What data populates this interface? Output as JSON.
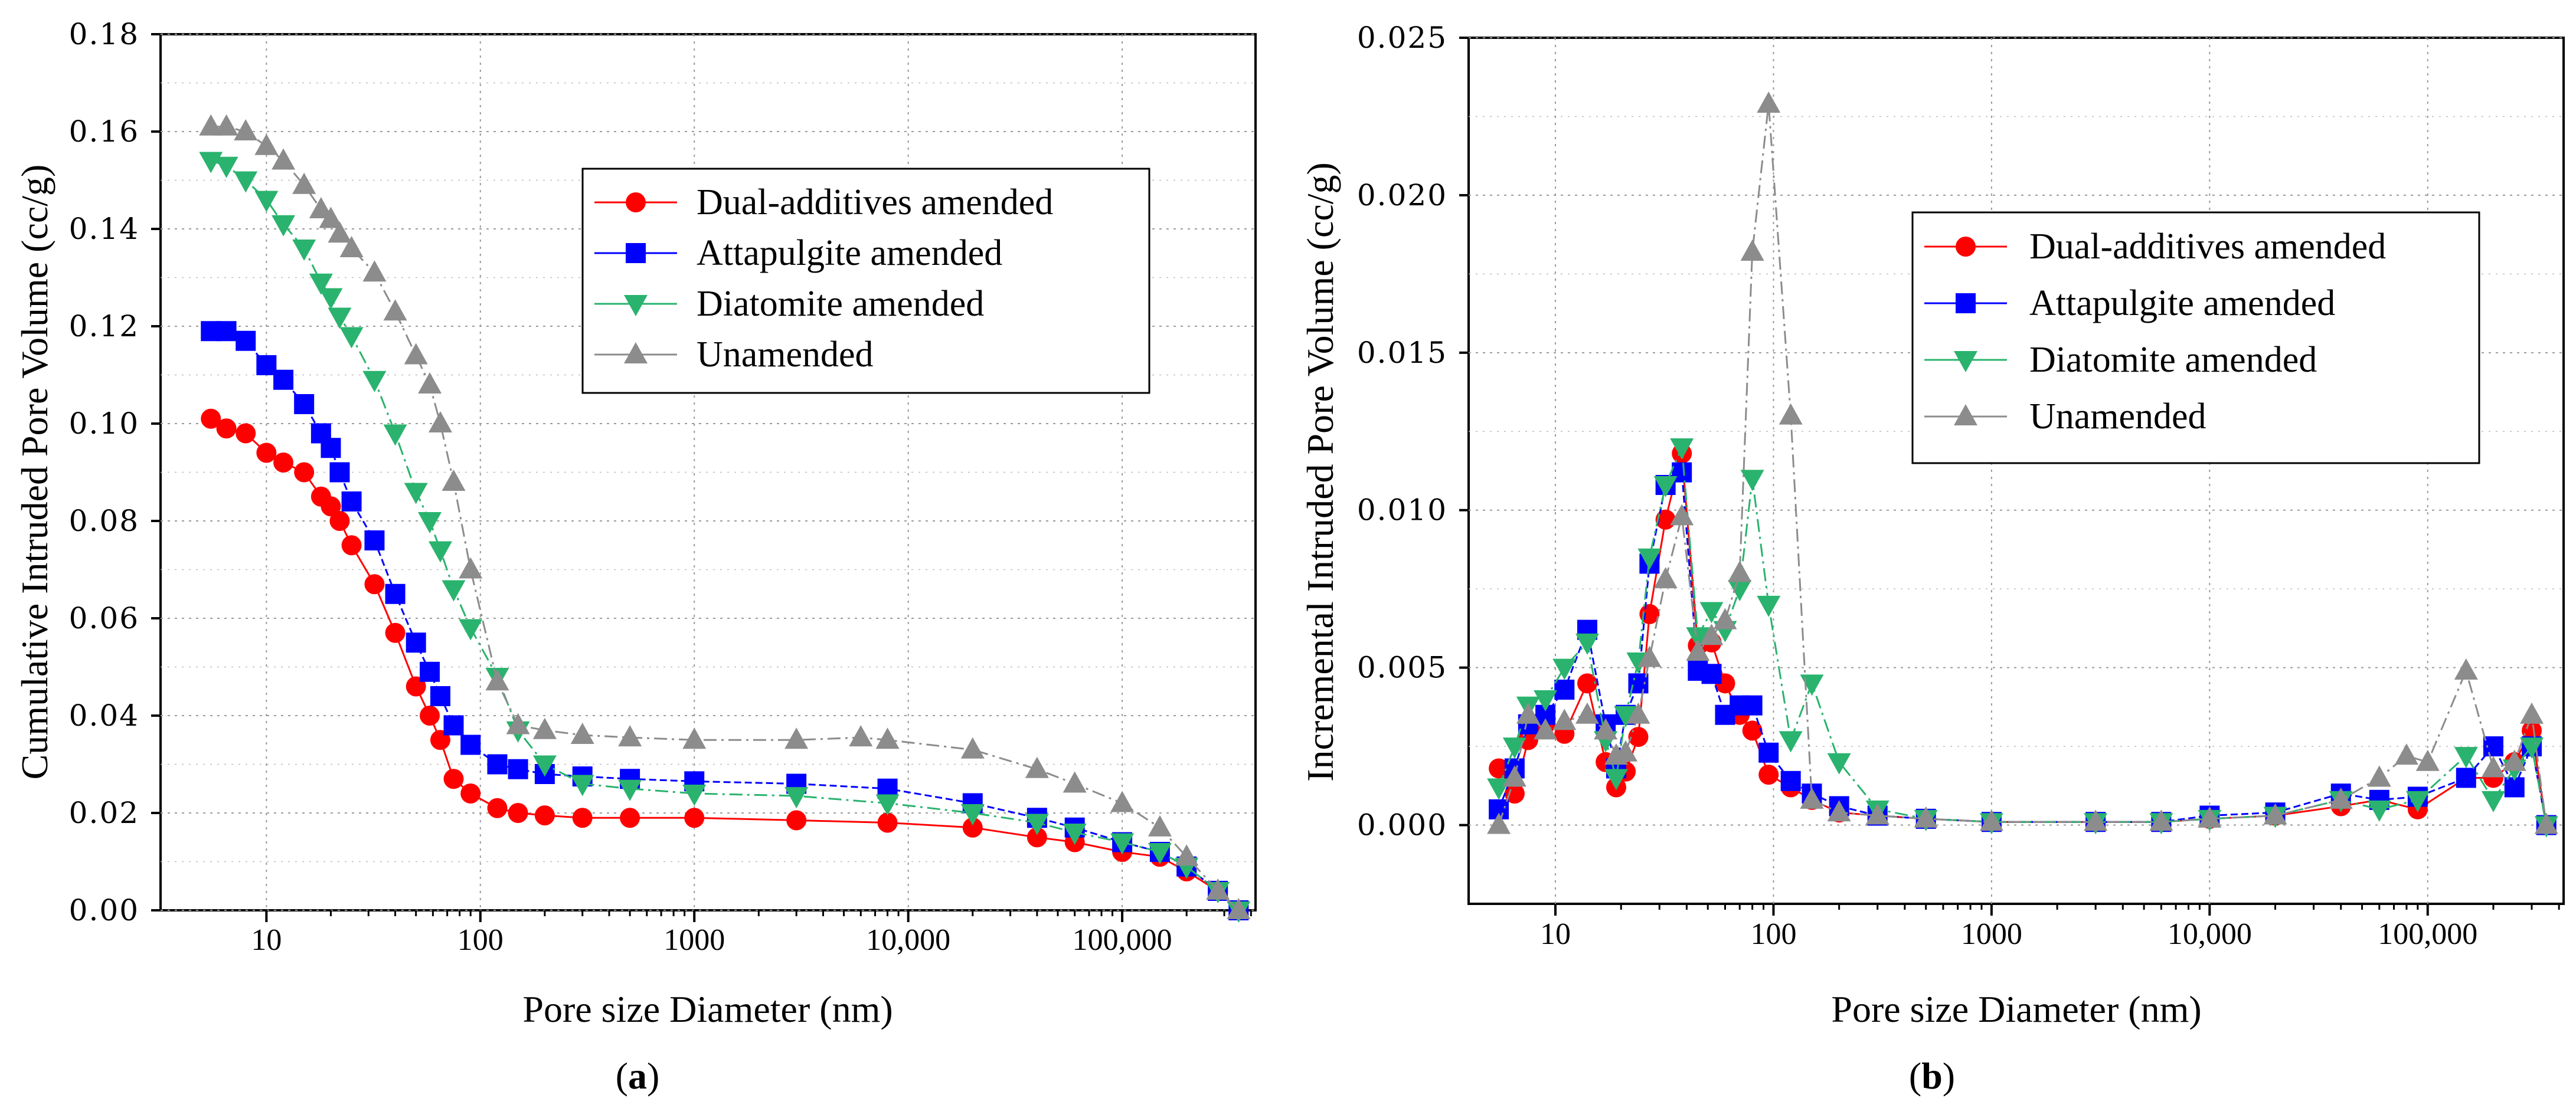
{
  "chart_data": [
    {
      "type": "line",
      "panel": "(a)",
      "caption_letter": "a",
      "xlabel": "Pore size Diameter (nm)",
      "ylabel": "Cumulative Intruded Pore Volume (cc/g)",
      "xscale": "log",
      "xlim": [
        3.2,
        420000
      ],
      "ylim": [
        0,
        0.18
      ],
      "yticks": [
        "0.00",
        "0.02",
        "0.04",
        "0.06",
        "0.08",
        "0.10",
        "0.12",
        "0.14",
        "0.16",
        "0.18"
      ],
      "yvalues": [
        0,
        0.02,
        0.04,
        0.06,
        0.08,
        0.1,
        0.12,
        0.14,
        0.16,
        0.18
      ],
      "xticks": [
        {
          "value": 10,
          "label": "10"
        },
        {
          "value": 100,
          "label": "100"
        },
        {
          "value": 1000,
          "label": "1000"
        },
        {
          "value": 10000,
          "label": "10,000"
        },
        {
          "value": 100000,
          "label": "100,000"
        }
      ],
      "legend_position": "top-right",
      "series": [
        {
          "name": "Dual-additives amended",
          "color": "#ff0000",
          "marker": "circle",
          "x": [
            5.5,
            6.5,
            8,
            10,
            12,
            15,
            18,
            20,
            22,
            25,
            32,
            40,
            50,
            58,
            65,
            75,
            90,
            120,
            150,
            200,
            300,
            500,
            1000,
            3000,
            8000,
            20000,
            40000,
            60000,
            100000,
            150000,
            200000,
            280000,
            350000
          ],
          "y": [
            0.101,
            0.099,
            0.098,
            0.094,
            0.092,
            0.09,
            0.085,
            0.083,
            0.08,
            0.075,
            0.067,
            0.057,
            0.046,
            0.04,
            0.035,
            0.027,
            0.024,
            0.021,
            0.02,
            0.0195,
            0.019,
            0.019,
            0.019,
            0.0185,
            0.018,
            0.017,
            0.015,
            0.014,
            0.012,
            0.011,
            0.008,
            0.004,
            0.0
          ]
        },
        {
          "name": "Attapulgite amended",
          "color": "#0000ff",
          "marker": "square",
          "x": [
            5.5,
            6.5,
            8,
            10,
            12,
            15,
            18,
            20,
            22,
            25,
            32,
            40,
            50,
            58,
            65,
            75,
            90,
            120,
            150,
            200,
            300,
            500,
            1000,
            3000,
            8000,
            20000,
            40000,
            60000,
            100000,
            150000,
            200000,
            280000,
            350000
          ],
          "y": [
            0.119,
            0.119,
            0.117,
            0.112,
            0.109,
            0.104,
            0.098,
            0.095,
            0.09,
            0.084,
            0.076,
            0.065,
            0.055,
            0.049,
            0.044,
            0.038,
            0.034,
            0.03,
            0.029,
            0.028,
            0.0275,
            0.027,
            0.0265,
            0.026,
            0.025,
            0.022,
            0.019,
            0.017,
            0.014,
            0.012,
            0.009,
            0.004,
            0.0
          ]
        },
        {
          "name": "Diatomite amended",
          "color": "#2ab36e",
          "marker": "triangle-down",
          "x": [
            5.5,
            6.5,
            8,
            10,
            12,
            15,
            18,
            20,
            22,
            25,
            32,
            40,
            50,
            58,
            65,
            75,
            90,
            120,
            150,
            200,
            300,
            500,
            1000,
            3000,
            8000,
            20000,
            40000,
            60000,
            100000,
            150000,
            200000,
            280000,
            350000
          ],
          "y": [
            0.154,
            0.153,
            0.15,
            0.146,
            0.141,
            0.136,
            0.129,
            0.126,
            0.122,
            0.118,
            0.109,
            0.098,
            0.086,
            0.08,
            0.074,
            0.066,
            0.058,
            0.048,
            0.037,
            0.03,
            0.026,
            0.025,
            0.024,
            0.0235,
            0.022,
            0.02,
            0.018,
            0.016,
            0.014,
            0.012,
            0.009,
            0.004,
            0.0
          ]
        },
        {
          "name": "Unamended",
          "color": "#8c8c8c",
          "marker": "triangle-up",
          "x": [
            5.5,
            6.5,
            8,
            10,
            12,
            15,
            18,
            20,
            22,
            25,
            32,
            40,
            50,
            58,
            65,
            75,
            90,
            120,
            150,
            200,
            300,
            500,
            1000,
            3000,
            6000,
            8000,
            20000,
            40000,
            60000,
            100000,
            150000,
            200000,
            280000,
            350000
          ],
          "y": [
            0.161,
            0.161,
            0.16,
            0.157,
            0.154,
            0.149,
            0.144,
            0.142,
            0.139,
            0.136,
            0.131,
            0.123,
            0.114,
            0.108,
            0.1,
            0.088,
            0.07,
            0.047,
            0.038,
            0.037,
            0.036,
            0.0355,
            0.035,
            0.035,
            0.0355,
            0.035,
            0.033,
            0.029,
            0.026,
            0.022,
            0.017,
            0.011,
            0.004,
            0.0
          ]
        }
      ]
    },
    {
      "type": "line",
      "panel": "(b)",
      "caption_letter": "b",
      "xlabel": "Pore size Diameter (nm)",
      "ylabel": "Incremental Intruded Pore Volume (cc/g)",
      "xscale": "log",
      "xlim": [
        4,
        420000
      ],
      "ylim": [
        -0.0025,
        0.025
      ],
      "yticks": [
        "0.000",
        "0.005",
        "0.010",
        "0.015",
        "0.020",
        "0.025"
      ],
      "yvalues": [
        0,
        0.005,
        0.01,
        0.015,
        0.02,
        0.025
      ],
      "xticks": [
        {
          "value": 10,
          "label": "10"
        },
        {
          "value": 100,
          "label": "100"
        },
        {
          "value": 1000,
          "label": "1000"
        },
        {
          "value": 10000,
          "label": "10,000"
        },
        {
          "value": 100000,
          "label": "100,000"
        }
      ],
      "legend_position": "top-right",
      "series": [
        {
          "name": "Dual-additives amended",
          "color": "#ff0000",
          "marker": "circle",
          "x": [
            5.5,
            6.5,
            7.5,
            9,
            11,
            14,
            17,
            19,
            21,
            24,
            27,
            32,
            38,
            45,
            52,
            60,
            70,
            80,
            95,
            120,
            150,
            200,
            300,
            500,
            1000,
            3000,
            6000,
            10000,
            20000,
            40000,
            60000,
            90000,
            150000,
            200000,
            250000,
            300000,
            350000
          ],
          "y": [
            0.0018,
            0.001,
            0.0027,
            0.0032,
            0.0029,
            0.0045,
            0.002,
            0.0012,
            0.0017,
            0.0028,
            0.0067,
            0.0097,
            0.0118,
            0.0057,
            0.0058,
            0.0045,
            0.0035,
            0.003,
            0.0016,
            0.0012,
            0.0008,
            0.0004,
            0.0003,
            0.0002,
            0.0001,
            0.0001,
            0.0001,
            0.0002,
            0.0003,
            0.0006,
            0.0008,
            0.0005,
            0.0015,
            0.0015,
            0.002,
            0.003,
            0.0
          ]
        },
        {
          "name": "Attapulgite amended",
          "color": "#0000ff",
          "marker": "square",
          "x": [
            5.5,
            6.5,
            7.5,
            9,
            11,
            14,
            17,
            19,
            21,
            24,
            27,
            32,
            38,
            45,
            52,
            60,
            70,
            80,
            95,
            120,
            150,
            200,
            300,
            500,
            1000,
            3000,
            6000,
            10000,
            20000,
            40000,
            60000,
            90000,
            150000,
            200000,
            250000,
            300000,
            350000
          ],
          "y": [
            0.0005,
            0.0018,
            0.0032,
            0.0035,
            0.0043,
            0.0062,
            0.0032,
            0.0018,
            0.0035,
            0.0045,
            0.0083,
            0.0108,
            0.0112,
            0.0049,
            0.0048,
            0.0035,
            0.0038,
            0.0038,
            0.0023,
            0.0014,
            0.001,
            0.0006,
            0.0003,
            0.0002,
            0.0001,
            0.0001,
            0.0001,
            0.0003,
            0.0004,
            0.001,
            0.0008,
            0.0009,
            0.0015,
            0.0025,
            0.0012,
            0.0025,
            0.0
          ]
        },
        {
          "name": "Diatomite amended",
          "color": "#2ab36e",
          "marker": "triangle-down",
          "x": [
            5.5,
            6.5,
            7.5,
            9,
            11,
            14,
            17,
            19,
            21,
            24,
            27,
            32,
            38,
            45,
            52,
            60,
            70,
            80,
            95,
            120,
            150,
            200,
            300,
            500,
            1000,
            3000,
            6000,
            10000,
            20000,
            40000,
            60000,
            90000,
            150000,
            200000,
            250000,
            300000,
            350000
          ],
          "y": [
            0.0012,
            0.0025,
            0.0038,
            0.004,
            0.005,
            0.0058,
            0.0027,
            0.0015,
            0.0035,
            0.0052,
            0.0085,
            0.0108,
            0.012,
            0.006,
            0.0068,
            0.0062,
            0.0075,
            0.011,
            0.007,
            0.0027,
            0.0045,
            0.002,
            0.0005,
            0.0002,
            0.0001,
            0.0001,
            0.0001,
            0.0002,
            0.0003,
            0.0008,
            0.0005,
            0.0008,
            0.0022,
            0.0008,
            0.0018,
            0.0025,
            0.0
          ]
        },
        {
          "name": "Unamended",
          "color": "#8c8c8c",
          "marker": "triangle-up",
          "x": [
            5.5,
            6.5,
            7.5,
            9,
            11,
            14,
            17,
            19,
            21,
            24,
            27,
            32,
            38,
            45,
            52,
            60,
            70,
            80,
            95,
            120,
            150,
            200,
            300,
            500,
            1000,
            3000,
            6000,
            10000,
            20000,
            40000,
            60000,
            80000,
            100000,
            150000,
            200000,
            250000,
            300000,
            350000
          ],
          "y": [
            0.0,
            0.0015,
            0.0035,
            0.003,
            0.0033,
            0.0035,
            0.003,
            0.0022,
            0.0023,
            0.0035,
            0.0053,
            0.0078,
            0.0098,
            0.0055,
            0.006,
            0.0065,
            0.008,
            0.0182,
            0.0229,
            0.013,
            0.0008,
            0.0004,
            0.0003,
            0.0002,
            0.0001,
            0.0001,
            0.0001,
            0.0002,
            0.0003,
            0.0008,
            0.0015,
            0.0022,
            0.002,
            0.0049,
            0.0018,
            0.002,
            0.0035,
            0.0
          ]
        }
      ]
    }
  ]
}
